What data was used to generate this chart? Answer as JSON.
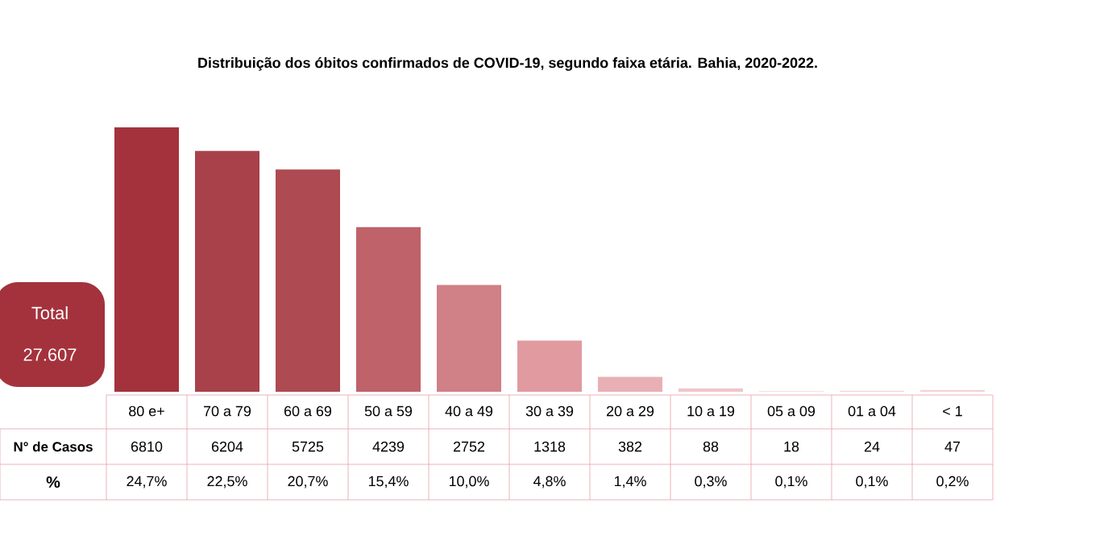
{
  "chart_data": {
    "type": "bar",
    "title": "Distribuição dos óbitos confirmados de COVID-19, segundo faixa etária. Bahia, 2020-2022.",
    "categories": [
      "80 e+",
      "70 a 79",
      "60 a 69",
      "50 a 59",
      "40 a 49",
      "30 a 39",
      "20 a 29",
      "10 a 19",
      "05 a 09",
      "01 a 04",
      "< 1"
    ],
    "values": [
      6810,
      6204,
      5725,
      4239,
      2752,
      1318,
      382,
      88,
      18,
      24,
      47
    ],
    "colors": [
      "#a4323c",
      "#a8414a",
      "#ad4a52",
      "#bf626a",
      "#d08087",
      "#e09aa0",
      "#e8b0b4",
      "#f0c6c9",
      "#f3d3d5",
      "#f3d3d5",
      "#f3d3d5"
    ],
    "data_labels": true,
    "annotations": [
      "N° de Casos",
      "%",
      "Total",
      "27.607",
      "24,7%",
      "22,5%",
      "20,7%",
      "15,4%",
      "10,0%",
      "4,8%",
      "1,4%",
      "0,3%",
      "0,1%",
      "0,1%",
      "0,2%"
    ]
  }
}
